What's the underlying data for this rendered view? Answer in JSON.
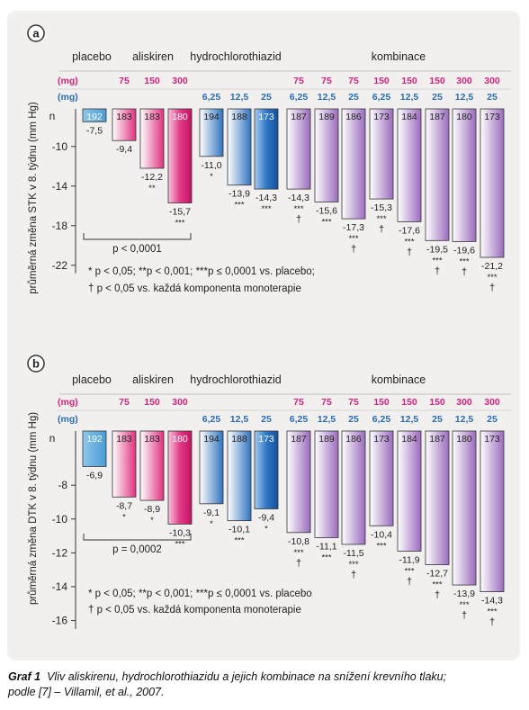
{
  "caption": {
    "label": "Graf 1",
    "text": "Vliv aliskirenu, hydrochlorothiazidu a jejich kombinace na snížení krevního tlaku;",
    "line2": "podle [7] – Villamil, et al., 2007."
  },
  "colors": {
    "pink_dose": "#d4237a",
    "blue_dose": "#2a6cb5",
    "placebo_fill": "#5aa7d8",
    "aliskiren_fill": "#e0307f",
    "hctz_fill": "#2469b9",
    "combo_fill": "#9a6bbd"
  },
  "chart_data": [
    {
      "panel_label": "a",
      "type": "bar",
      "ylabel": "průměrná změna STK v 8. týdnu (mm Hg)",
      "ylim": [
        0,
        -22.8
      ],
      "yticks": [
        -10,
        -14,
        -18,
        -22
      ],
      "n_label": "n",
      "group_labels": [
        "placebo",
        "aliskiren",
        "hydrochlorothiazid",
        "kombinace"
      ],
      "unit_label": "(mg)",
      "aliskiren_doses": [
        "",
        "75",
        "150",
        "300",
        "",
        "",
        "",
        "75",
        "75",
        "75",
        "150",
        "150",
        "150",
        "300",
        "300"
      ],
      "hctz_doses": [
        "",
        "",
        "",
        "",
        "6,25",
        "12,5",
        "25",
        "6,25",
        "12,5",
        "25",
        "6,25",
        "12,5",
        "25",
        "12,5",
        "25"
      ],
      "categories": [
        "placebo",
        "A75",
        "A150",
        "A300",
        "H6,25",
        "H12,5",
        "H25",
        "A75/H6,25",
        "A75/H12,5",
        "A75/H25",
        "A150/H6,25",
        "A150/H12,5",
        "A150/H25",
        "A300/H12,5",
        "A300/H25"
      ],
      "groups": [
        "placebo",
        "aliskiren",
        "aliskiren",
        "aliskiren",
        "hctz",
        "hctz",
        "hctz",
        "combo",
        "combo",
        "combo",
        "combo",
        "combo",
        "combo",
        "combo",
        "combo"
      ],
      "values": [
        -7.5,
        -9.4,
        -12.2,
        -15.7,
        -11.0,
        -13.9,
        -14.3,
        -14.3,
        -15.6,
        -17.3,
        -15.3,
        -17.6,
        -19.5,
        -19.6,
        -21.2
      ],
      "value_labels": [
        "-7,5",
        "-9,4",
        "-12,2",
        "-15,7",
        "-11,0",
        "-13,9",
        "-14,3",
        "-14,3",
        "-15,6",
        "-17,3",
        "-15,3",
        "-17,6",
        "-19,5",
        "-19,6",
        "-21,2"
      ],
      "n": [
        "192",
        "183",
        "183",
        "180",
        "194",
        "188",
        "173",
        "187",
        "189",
        "186",
        "173",
        "184",
        "187",
        "180",
        "173"
      ],
      "significance": [
        "",
        "",
        "**",
        "***",
        "*",
        "***",
        "***",
        "***",
        "***",
        "***",
        "***",
        "***",
        "***",
        "***",
        "***"
      ],
      "dagger": [
        "",
        "",
        "",
        "",
        "",
        "",
        "",
        "†",
        "",
        "†",
        "†",
        "†",
        "†",
        "†",
        "†"
      ],
      "bracket_label": "p < 0,0001",
      "footnote1": "* p < 0,05; **p < 0,001; ***p ≤ 0,0001 vs. placebo;",
      "footnote2": "† p < 0,05 vs. každá komponenta monoterapie"
    },
    {
      "panel_label": "b",
      "type": "bar",
      "ylabel": "průměrná změna DTK v 8. týdnu (mm Hg)",
      "ylim": [
        -4.2,
        -16.5
      ],
      "yticks": [
        -8,
        -10,
        -12,
        -14,
        -16
      ],
      "n_label": "n",
      "group_labels": [
        "placebo",
        "aliskiren",
        "hydrochlorothiazid",
        "kombinace"
      ],
      "unit_label": "(mg)",
      "aliskiren_doses": [
        "",
        "75",
        "150",
        "300",
        "",
        "",
        "",
        "75",
        "75",
        "75",
        "150",
        "150",
        "150",
        "300",
        "300"
      ],
      "hctz_doses": [
        "",
        "",
        "",
        "",
        "6,25",
        "12,5",
        "25",
        "6,25",
        "12,5",
        "25",
        "6,25",
        "12,5",
        "25",
        "12,5",
        "25"
      ],
      "categories": [
        "placebo",
        "A75",
        "A150",
        "A300",
        "H6,25",
        "H12,5",
        "H25",
        "A75/H6,25",
        "A75/H12,5",
        "A75/H25",
        "A150/H6,25",
        "A150/H12,5",
        "A150/H25",
        "A300/H12,5",
        "A300/H25"
      ],
      "groups": [
        "placebo",
        "aliskiren",
        "aliskiren",
        "aliskiren",
        "hctz",
        "hctz",
        "hctz",
        "combo",
        "combo",
        "combo",
        "combo",
        "combo",
        "combo",
        "combo",
        "combo"
      ],
      "values": [
        -6.9,
        -8.7,
        -8.9,
        -10.3,
        -9.1,
        -10.1,
        -9.4,
        -10.8,
        -11.1,
        -11.5,
        -10.4,
        -11.9,
        -12.7,
        -13.9,
        -14.3
      ],
      "value_labels": [
        "-6,9",
        "-8,7",
        "-8,9",
        "-10,3",
        "-9,1",
        "-10,1",
        "-9,4",
        "-10,8",
        "-11,1",
        "-11,5",
        "-10,4",
        "-11,9",
        "-12,7",
        "-13,9",
        "-14,3"
      ],
      "n": [
        "192",
        "183",
        "183",
        "180",
        "194",
        "188",
        "173",
        "187",
        "189",
        "186",
        "173",
        "184",
        "187",
        "180",
        "173"
      ],
      "significance": [
        "",
        "*",
        "*",
        "***",
        "*",
        "***",
        "*",
        "***",
        "***",
        "***",
        "***",
        "***",
        "***",
        "***",
        "***"
      ],
      "dagger": [
        "",
        "",
        "",
        "",
        "",
        "",
        "",
        "†",
        "",
        "†",
        "",
        "†",
        "†",
        "†",
        "†"
      ],
      "bracket_label": "p = 0,0002",
      "footnote1": "* p < 0,05; **p < 0,001; ***p ≤ 0,0001 vs. placebo",
      "footnote2": "† p < 0,05 vs. každá komponenta monoterapie"
    }
  ]
}
